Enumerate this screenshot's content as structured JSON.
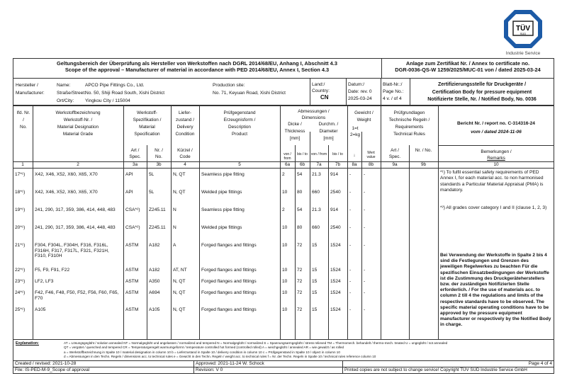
{
  "logo": {
    "brand": "TÜV SÜD",
    "subtitle": "Industrie Service",
    "color": "#1c5aa6"
  },
  "title": {
    "de": "Geltungsbereich der Überprüfung als Hersteller von Werkstoffen nach DGRL 2014/68/EU, Anhang I, Abschnitt 4.3",
    "en": "Scope of the approval – Manufacturer of material in accordance with PED 2014/68/EU, Annex I, Section 4.3",
    "annex_de": "Anlage zum Zertifikat Nr. / Annex to certificate no.",
    "annex_en": "DGR-0036-QS-W 1259/2025/MUC-01 von / dated 2025-03-24"
  },
  "manufacturer": {
    "label1": "Hersteller /",
    "label2": "Manufacturer:",
    "name_label": "Name:",
    "street_label": "Straße/Street:",
    "city_label": "Ort/City:",
    "name": "APCO Pipe Fittings Co., Ltd.",
    "street": "No. 50, Shiji Road South, Xishi District",
    "city": "Yingkou City / 115004",
    "site_label": "Production site:",
    "site": "No. 71, Keyuan Road, Xishi District",
    "country_label1": "Land:/",
    "country_label2": "Country:",
    "country": "CN",
    "date_label1": "Datum:/",
    "date_label2": "Date: rev. 0",
    "date": "2025-03-24",
    "page_label1": "Blatt-Nr.:/",
    "page_label2": "Page No.:",
    "page": "4 v. / of 4",
    "body1": "Zertifizierungsstelle für Druckgeräte /",
    "body2": "Certification Body for pressure equipment",
    "body3": "Notifizierte Stelle, Nr. / Notified Body, No. 0036"
  },
  "headers": {
    "h1": [
      "lfd. Nr.",
      "/",
      "No."
    ],
    "h2": [
      "Werkstoffbezeichnung",
      "Werkstoff-Nr. /",
      "Material Designation",
      "Material Grade"
    ],
    "h3": [
      "Werkstoff-",
      "Spezifikation /",
      "Material",
      "Specification"
    ],
    "h3a": [
      "Art /",
      "Spec."
    ],
    "h3b": [
      "Nr. /",
      "No."
    ],
    "h4": [
      "Liefer-",
      "zustand /",
      "Delivery",
      "Condition"
    ],
    "h4s": [
      "Kürzel /",
      "Code"
    ],
    "h5": [
      "Prüfgegenstand",
      "Erzeugnisform /",
      "Description",
      "Product"
    ],
    "h6": [
      "Abmessungen /",
      "Dimensions"
    ],
    "h6t": [
      "Dicke /",
      "Thickness",
      "[mm]"
    ],
    "h7t": [
      "Durchm. /",
      "Diameter",
      "[mm]"
    ],
    "vonbis": [
      "von / from",
      "bis / to"
    ],
    "h8": [
      "Gewicht /",
      "Weight"
    ],
    "h8u": [
      "1=t",
      "2=kg"
    ],
    "h8a": "↓",
    "h8b": [
      "Wert",
      "value"
    ],
    "h9": [
      "Prüfgrundlagen",
      "Technische Regeln /",
      "Requirements",
      "Technical Rules"
    ],
    "h9a": [
      "Art /",
      "Spec."
    ],
    "h9b": "Nr. / No.",
    "report": "Bericht Nr. / report no. C-314316-24",
    "report_date": "vom / dated 2024-11-06",
    "h10": [
      "Bemerkungen /",
      "Remarks"
    ],
    "nums": [
      "1",
      "2",
      "3a",
      "3b",
      "4",
      "5",
      "6a",
      "6b",
      "7a",
      "7b",
      "8a",
      "8b",
      "9a",
      "9b",
      "10"
    ]
  },
  "rows": [
    {
      "no": "17*¹)",
      "grade": "X42, X46, X52, X60, X65, X70",
      "spec": "API",
      "specno": "5L",
      "cond": "N, QT",
      "product": "Seamless pipe fitting",
      "t_from": "2",
      "t_to": "54",
      "d_from": "21.3",
      "d_to": "914",
      "w_unit": "-",
      "w_value": "-"
    },
    {
      "no": "18*¹)",
      "grade": "X42, X46, X52, X60, X65, X70",
      "spec": "API",
      "specno": "5L",
      "cond": "N, QT",
      "product": "Welded pipe fittings",
      "t_from": "10",
      "t_to": "80",
      "d_from": "660",
      "d_to": "2540",
      "w_unit": "-",
      "w_value": "-"
    },
    {
      "no": "19*¹)",
      "grade": "241, 290, 317, 359, 386, 414, 448, 483",
      "spec": "CSA*²)",
      "specno": "Z245.11",
      "cond": "N",
      "product": "Seamless pipe fitting",
      "t_from": "2",
      "t_to": "54",
      "d_from": "21.3",
      "d_to": "914",
      "w_unit": "-",
      "w_value": "-"
    },
    {
      "no": "20*¹)",
      "grade": "241, 290, 317, 359, 386, 414, 448, 483",
      "spec": "CSA*²)",
      "specno": "Z245.11",
      "cond": "N",
      "product": "Welded pipe fittings",
      "t_from": "10",
      "t_to": "80",
      "d_from": "660",
      "d_to": "2540",
      "w_unit": "-",
      "w_value": "-"
    },
    {
      "no": "21*¹)",
      "grade": "F304, F304L, F304H, F316, F316L, F316H, F317, F317L, F321, F321H, F310, F310H",
      "spec": "ASTM",
      "specno": "A182",
      "cond": "A",
      "product": "Forged flanges and fittings",
      "t_from": "10",
      "t_to": "72",
      "d_from": "15",
      "d_to": "1524",
      "w_unit": "-",
      "w_value": "-"
    },
    {
      "no": "22*¹)",
      "grade": "F5, F9, F91, F22",
      "spec": "ASTM",
      "specno": "A182",
      "cond": "AT, NT",
      "product": "Forged flanges and fittings",
      "t_from": "10",
      "t_to": "72",
      "d_from": "15",
      "d_to": "1524",
      "w_unit": "-",
      "w_value": "-"
    },
    {
      "no": "23*¹)",
      "grade": "LF2, LF3",
      "spec": "ASTM",
      "specno": "A350",
      "cond": "N, QT",
      "product": "Forged flanges and fittings",
      "t_from": "10",
      "t_to": "72",
      "d_from": "15",
      "d_to": "1524",
      "w_unit": "-",
      "w_value": "-"
    },
    {
      "no": "24*¹)",
      "grade": "F42, F46, F48, F50, F52, F56, F60, F65, F70",
      "spec": "ASTM",
      "specno": "A694",
      "cond": "N, QT",
      "product": "Forged flanges and fittings",
      "t_from": "10",
      "t_to": "72",
      "d_from": "15",
      "d_to": "1524",
      "w_unit": "-",
      "w_value": "-"
    },
    {
      "no": "25*¹)",
      "grade": "A105",
      "spec": "ASTM",
      "specno": "A105",
      "cond": "N, QT",
      "product": "Forged flanges and fittings",
      "t_from": "10",
      "t_to": "72",
      "d_from": "15",
      "d_to": "1524",
      "w_unit": "-",
      "w_value": "-"
    }
  ],
  "remarks": {
    "r1": "*¹) To fulfil essential safety requirements of PED Annex I, for each material acc. to non harmonised standards a Particular Material Appraisal (PMA) is mandatory.",
    "r2": "*²) All grades cover category I and II (clause 1, 2, 3)",
    "r3": "Bei Verwendung der Werkstoffe in Spalte 2 bis 4 sind die Festlegungen und Grenzen des jeweiligen Regelwerkes zu beachten Für die spezifischen Einsatzbedingungen der Werkstoffe ist die Zustimmung des Druckgeräteherstellers bzw. der zuständigen Notifizierten Stelle erforderlich. / For the use of materials acc. to column 2 till 4 the regulations and limits of the respective standards have to be observed. The specific material operating conditions have to be approved by the pressure equipment manufacturer or respectively by the Notified Body in charge."
  },
  "explanation": {
    "label": "Explanation:",
    "lines": [
      "AT = Lösungsgeglüht / solution annealed   NT = Normalgeglüht und angelassen / normalized and tempered   N = Normalgeglüht / normalized   S = Spannungsarmgeglüht / stress relieved   TM = Thermomech. behandelt / thermo-mech. treated   U = ungeglüht / not annealed",
      "QT = vergütet / quenched and tempered   CR = Temperaturgeregelt warmumgeformt / temperature controlled hot formed (controlled rolled)   A = weichgeglüht / annealed   AR = wie gewalzt / as rolled",
      "a = Werkstoffbezeichnung in Spalte 10 / material designation in column 10   b = Lieferzustand in Spalte 10 / delivery condition in column 10   c = Prüfgegenstand in Spalte 10 / object in column 10",
      "d = Abmessungen in den Techn. Regeln / dimensions acc. to technical rules   e = Gewicht in den Techn. Regeln / weight acc. to technical rules   f = Nr. der Techn. Regeln in Spalte 10 / technical rules reference column 10"
    ]
  },
  "footer": {
    "created": "Created / revised: 2021-10-28",
    "file": "File: IS-PED-M-9_Scope of approval",
    "approved": "Approved: 2021-11-24 W. Schock",
    "revision": "Revision:   V 0",
    "page": "Page 4 of 4",
    "copyright": "Printed copies are not subject to change service! Copyright TÜV SÜD Industrie Service GmbH"
  }
}
